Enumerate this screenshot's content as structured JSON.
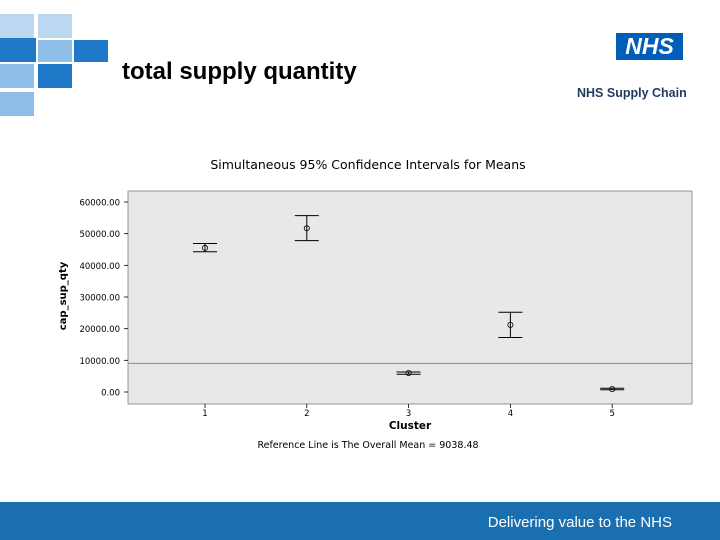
{
  "slide": {
    "title": "total supply quantity",
    "org_subtitle": "NHS Supply Chain",
    "logo_text": "NHS",
    "footer": "Delivering value to the NHS"
  },
  "colors": {
    "plot_bg": "#e8e8e8",
    "footer_bg": "#1a6fb0",
    "logo_bg": "#005eb8",
    "deco_dark": "#1f78c8",
    "deco_light": "#8fbfe8"
  },
  "chart_data": {
    "type": "scatter",
    "subtype": "confidence-interval",
    "title": "Simultaneous 95% Confidence Intervals for Means",
    "xlabel": "Cluster",
    "ylabel": "cap_sup_qty",
    "categories": [
      "1",
      "2",
      "3",
      "4",
      "5"
    ],
    "means": [
      45500,
      51700,
      6000,
      21200,
      900
    ],
    "lower": [
      44300,
      47800,
      5600,
      17200,
      700
    ],
    "upper": [
      46900,
      55700,
      6300,
      25200,
      1200
    ],
    "ylim": [
      0,
      60000
    ],
    "yticks": [
      "60000.00",
      "50000.00",
      "40000.00",
      "30000.00",
      "20000.00",
      "10000.00",
      "0.00"
    ],
    "ytick_values": [
      60000,
      50000,
      40000,
      30000,
      20000,
      10000,
      0
    ],
    "reference_line": 9038.48,
    "footnote": "Reference Line is The Overall Mean = 9038.48",
    "grid": false
  }
}
